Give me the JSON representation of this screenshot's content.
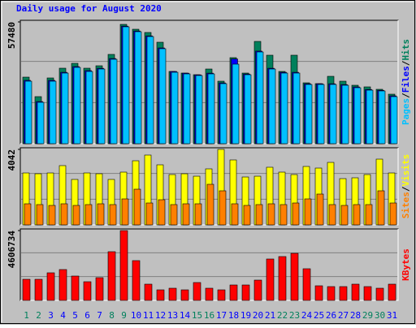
{
  "chart_data": [
    {
      "type": "bar",
      "title": "Daily usage for August 2020",
      "legend_separator": "/",
      "ylim": [
        0,
        57480
      ],
      "yticks": [
        57480
      ],
      "series": [
        {
          "name": "Hits",
          "color": "#00805c",
          "values": [
            31422,
            22225,
            31039,
            35638,
            37936,
            35638,
            36788,
            42153,
            56330,
            54030,
            52498,
            47900,
            34105,
            33338,
            32572,
            35254,
            29506,
            40620,
            33338,
            48282,
            41770,
            34105,
            41770,
            28740,
            28357,
            31805,
            29506,
            27591,
            26825,
            25675,
            23375
          ]
        },
        {
          "name": "Files",
          "color": "#0000ff",
          "values": [
            29900,
            19900,
            29900,
            33700,
            36400,
            34500,
            35600,
            40200,
            55500,
            53200,
            50900,
            45200,
            34100,
            33300,
            32500,
            33300,
            28700,
            40000,
            32900,
            43700,
            35600,
            33700,
            33700,
            28300,
            28300,
            28300,
            27900,
            26800,
            25600,
            25200,
            22600
          ]
        },
        {
          "name": "Pages",
          "color": "#00c0ff",
          "values": [
            29506,
            19542,
            29506,
            33338,
            36021,
            34104,
            35255,
            39854,
            55180,
            52882,
            50582,
            44836,
            33722,
            32955,
            32188,
            32955,
            28357,
            37554,
            32572,
            43303,
            35254,
            33339,
            33338,
            27974,
            27974,
            27974,
            27591,
            26440,
            25290,
            24907,
            22225
          ]
        }
      ]
    },
    {
      "type": "bar",
      "legend_separator": "/",
      "ylim": [
        0,
        4042
      ],
      "yticks": [
        4042
      ],
      "series": [
        {
          "name": "Visits",
          "color": "#ffff00",
          "values": [
            2781,
            2738,
            2781,
            3173,
            2434,
            2781,
            2738,
            2434,
            2825,
            3433,
            3738,
            3216,
            2694,
            2738,
            2607,
            2999,
            4042,
            3477,
            2564,
            2607,
            3086,
            2825,
            2694,
            3129,
            3042,
            3346,
            2477,
            2521,
            2694,
            3520,
            2781
          ]
        },
        {
          "name": "Sites",
          "color": "#ff8000",
          "values": [
            1130,
            1087,
            1043,
            1130,
            1043,
            1087,
            1130,
            1087,
            1391,
            1912,
            1173,
            1347,
            1087,
            1130,
            1130,
            2173,
            1825,
            1130,
            1043,
            1087,
            1130,
            1087,
            1173,
            1391,
            1651,
            1087,
            1043,
            1087,
            1087,
            1825,
            1173
          ]
        }
      ]
    },
    {
      "type": "bar",
      "ylim": [
        0,
        4606734
      ],
      "yticks": [
        4606734
      ],
      "categories": [
        "1",
        "2",
        "3",
        "4",
        "5",
        "6",
        "7",
        "8",
        "9",
        "10",
        "11",
        "12",
        "13",
        "14",
        "15",
        "16",
        "17",
        "18",
        "19",
        "20",
        "21",
        "22",
        "23",
        "24",
        "25",
        "26",
        "27",
        "28",
        "29",
        "30",
        "31"
      ],
      "category_colors": [
        "#00805c",
        "#00805c",
        "#0000ff",
        "#0000ff",
        "#0000ff",
        "#0000ff",
        "#0000ff",
        "#00805c",
        "#00805c",
        "#0000ff",
        "#0000ff",
        "#0000ff",
        "#0000ff",
        "#0000ff",
        "#00805c",
        "#00805c",
        "#0000ff",
        "#0000ff",
        "#0000ff",
        "#0000ff",
        "#0000ff",
        "#00805c",
        "#00805c",
        "#0000ff",
        "#0000ff",
        "#0000ff",
        "#0000ff",
        "#0000ff",
        "#00805c",
        "#00805c",
        "#0000ff"
      ],
      "series": [
        {
          "name": "KBytes",
          "color": "#ff0000",
          "values": [
            1392742,
            1392742,
            1821278,
            2035546,
            1607010,
            1232041,
            1499876,
            3214020,
            4606734,
            2624783,
            1071340,
            696371,
            803505,
            696371,
            1178874,
            803505,
            696371,
            1017773,
            1017773,
            1339175,
            2731917,
            2892618,
            3106886,
            2089113,
            964206,
            910639,
            910639,
            1071340,
            910639,
            803505,
            1071340
          ]
        }
      ]
    }
  ]
}
